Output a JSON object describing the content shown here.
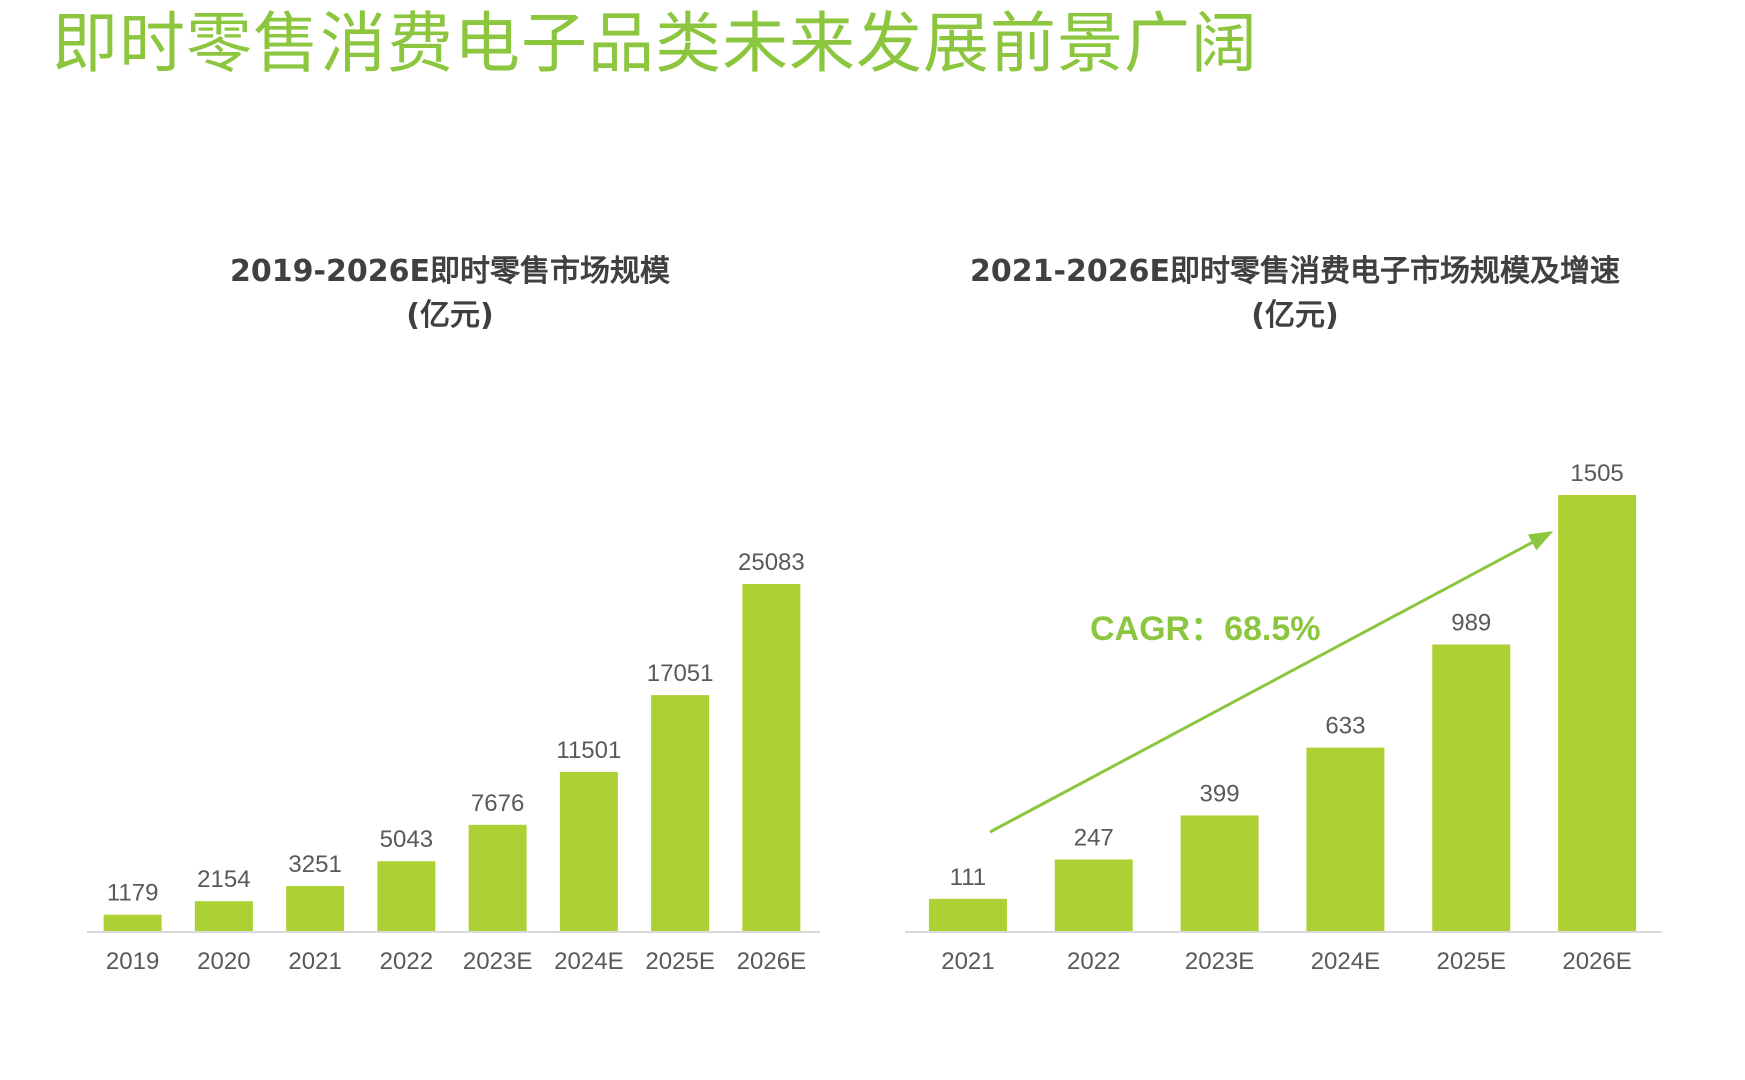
{
  "page": {
    "title": "即时零售消费电子品类未来发展前景广阔"
  },
  "colors": {
    "accent": "#8cc63f",
    "bar": "#add134",
    "text": "#595959",
    "heading": "#404040",
    "axis": "#d9d9d9"
  },
  "chart_data": [
    {
      "type": "bar",
      "title": "2019-2026E即时零售市场规模",
      "subtitle": "(亿元)",
      "categories": [
        "2019",
        "2020",
        "2021",
        "2022",
        "2023E",
        "2024E",
        "2025E",
        "2026E"
      ],
      "values": [
        1179,
        2154,
        3251,
        5043,
        7676,
        11501,
        17051,
        25083
      ],
      "data_labels": [
        "1179",
        "2154",
        "3251",
        "5043",
        "7676",
        "11501",
        "17051",
        "25083"
      ],
      "ylim": [
        0,
        25083
      ],
      "grid": false,
      "legend": "none"
    },
    {
      "type": "bar",
      "title": "2021-2026E即时零售消费电子市场规模及增速",
      "subtitle": "(亿元)",
      "categories": [
        "2021",
        "2022",
        "2023E",
        "2024E",
        "2025E",
        "2026E"
      ],
      "values": [
        111,
        247,
        399,
        633,
        989,
        1505
      ],
      "data_labels": [
        "111",
        "247",
        "399",
        "633",
        "989",
        "1505"
      ],
      "ylim": [
        0,
        1505
      ],
      "grid": false,
      "legend": "none",
      "annotation": "CAGR：68.5%"
    }
  ]
}
